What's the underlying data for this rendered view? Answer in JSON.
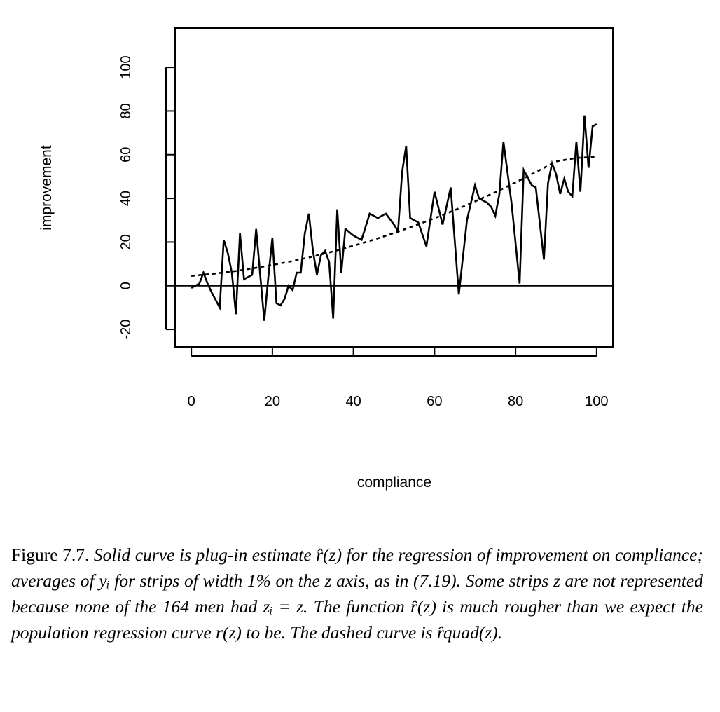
{
  "chart_data": {
    "type": "line",
    "xlabel": "compliance",
    "ylabel": "improvement",
    "xlim": [
      -4,
      104
    ],
    "ylim": [
      -28,
      118
    ],
    "xticks": [
      0,
      20,
      40,
      60,
      80,
      100
    ],
    "yticks": [
      -20,
      0,
      20,
      40,
      60,
      80,
      100
    ],
    "xtick_labels": [
      "0",
      "20",
      "40",
      "60",
      "80",
      "100"
    ],
    "ytick_labels": [
      "-20",
      "0",
      "20",
      "40",
      "60",
      "80",
      "100"
    ],
    "hline": 0,
    "series": [
      {
        "style": "solid",
        "x": [
          0,
          2,
          3,
          4,
          5,
          7,
          8,
          9,
          10,
          11,
          12,
          13,
          14,
          15,
          16,
          17,
          18,
          19,
          20,
          21,
          22,
          23,
          24,
          25,
          26,
          27,
          28,
          29,
          30,
          31,
          32,
          33,
          34,
          35,
          36,
          37,
          38,
          40,
          42,
          44,
          46,
          48,
          50,
          51,
          52,
          53,
          54,
          56,
          58,
          60,
          62,
          64,
          66,
          68,
          70,
          71,
          72,
          73,
          74,
          75,
          76,
          77,
          79,
          81,
          82,
          84,
          85,
          87,
          88,
          89,
          90,
          91,
          92,
          93,
          94,
          95,
          96,
          97,
          98,
          99,
          100
        ],
        "y": [
          -1,
          1,
          6,
          1,
          -3,
          -10,
          21,
          15,
          6,
          -13,
          24,
          3,
          4,
          5,
          26,
          5,
          -16,
          4,
          22,
          -8,
          -9,
          -6,
          0,
          -2,
          6,
          6,
          24,
          33,
          16,
          5,
          14,
          16,
          11,
          -15,
          35,
          6,
          26,
          23,
          21,
          33,
          31,
          33,
          28,
          25,
          52,
          64,
          31,
          29,
          18,
          43,
          28,
          45,
          -4,
          30,
          46,
          40,
          39,
          38,
          36,
          32,
          42,
          66,
          38,
          1,
          53,
          46,
          45,
          12,
          47,
          56,
          51,
          42,
          49,
          43,
          41,
          66,
          43,
          78,
          54,
          73,
          74
        ]
      },
      {
        "style": "dashed",
        "x": [
          0,
          5,
          10,
          15,
          20,
          25,
          30,
          35,
          40,
          45,
          50,
          55,
          60,
          65,
          70,
          75,
          80,
          85,
          90,
          95,
          100
        ],
        "y": [
          4.5,
          5.4,
          6.5,
          7.9,
          9.5,
          11.3,
          13.4,
          15.7,
          18.3,
          21.1,
          24.1,
          27.4,
          30.9,
          34.6,
          38.6,
          42.8,
          47.3,
          52,
          56.9,
          58.5,
          59
        ]
      }
    ]
  },
  "caption": {
    "lead": "Figure 7.7.",
    "body": "Solid curve is plug-in estimate r̂(z) for the regression of improvement on compliance; averages of yᵢ for strips of width 1% on the z axis, as in (7.19). Some strips z are not represented because none of the 164 men had zᵢ = z. The function r̂(z) is much rougher than we expect the population regression curve r(z) to be. The dashed curve is r̂quad(z)."
  }
}
